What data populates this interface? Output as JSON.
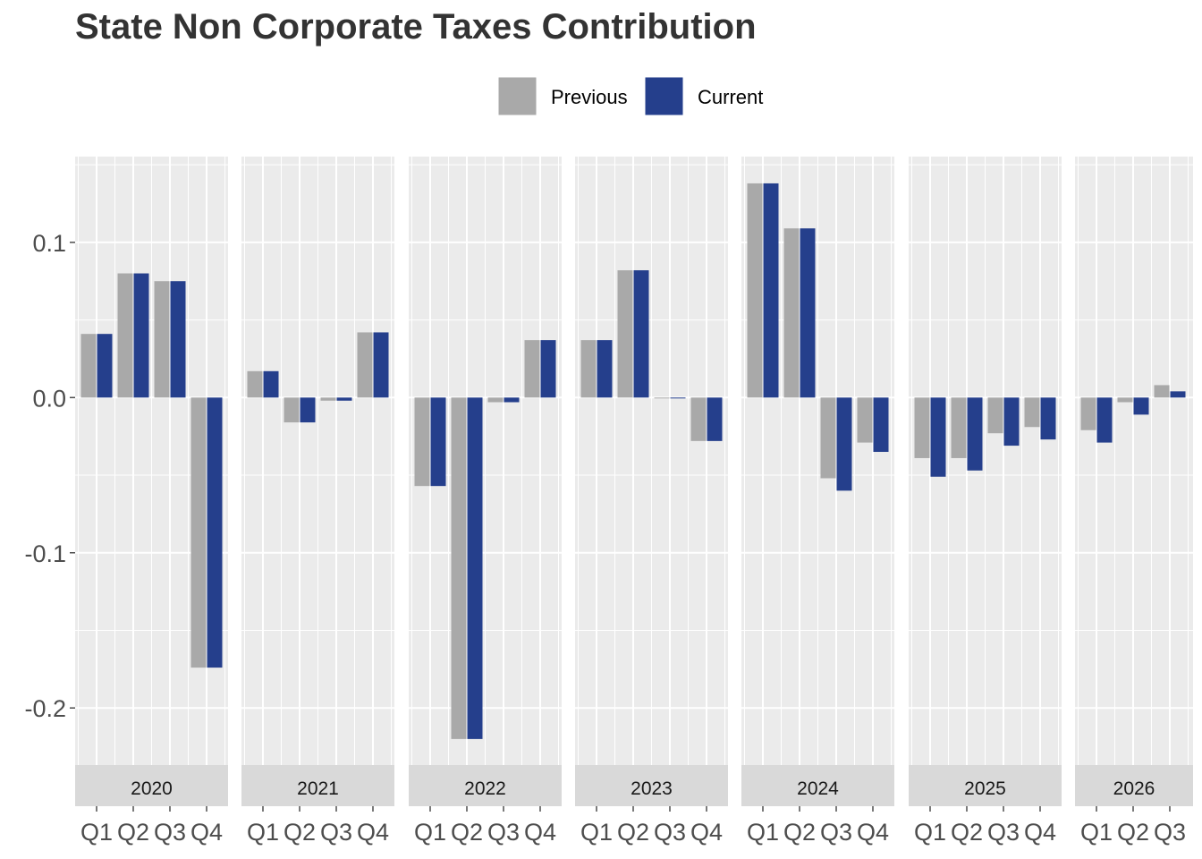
{
  "chart_data": {
    "type": "bar",
    "title": "State Non Corporate Taxes Contribution",
    "xlabel": "",
    "ylabel": "",
    "ylim": [
      -0.25,
      0.155
    ],
    "yticks": [
      -0.2,
      -0.1,
      0.0,
      0.1
    ],
    "ytick_labels": [
      "-0.2",
      "-0.1",
      "0.0",
      "0.1"
    ],
    "grid": true,
    "legend_position": "top",
    "legend": [
      {
        "name": "Previous",
        "color": "#A9A9A9"
      },
      {
        "name": "Current",
        "color": "#253F8C"
      }
    ],
    "panels": [
      {
        "year": "2020",
        "categories": [
          "Q1",
          "Q2",
          "Q3",
          "Q4"
        ],
        "series": [
          {
            "name": "Previous",
            "values": [
              0.041,
              0.08,
              0.075,
              -0.174
            ]
          },
          {
            "name": "Current",
            "values": [
              0.041,
              0.08,
              0.075,
              -0.174
            ]
          }
        ]
      },
      {
        "year": "2021",
        "categories": [
          "Q1",
          "Q2",
          "Q3",
          "Q4"
        ],
        "series": [
          {
            "name": "Previous",
            "values": [
              0.017,
              -0.016,
              -0.002,
              0.042
            ]
          },
          {
            "name": "Current",
            "values": [
              0.017,
              -0.016,
              -0.002,
              0.042
            ]
          }
        ]
      },
      {
        "year": "2022",
        "categories": [
          "Q1",
          "Q2",
          "Q3",
          "Q4"
        ],
        "series": [
          {
            "name": "Previous",
            "values": [
              -0.057,
              -0.22,
              -0.003,
              0.037
            ]
          },
          {
            "name": "Current",
            "values": [
              -0.057,
              -0.22,
              -0.003,
              0.037
            ]
          }
        ]
      },
      {
        "year": "2023",
        "categories": [
          "Q1",
          "Q2",
          "Q3",
          "Q4"
        ],
        "series": [
          {
            "name": "Previous",
            "values": [
              0.037,
              0.082,
              -0.0005,
              -0.028
            ]
          },
          {
            "name": "Current",
            "values": [
              0.037,
              0.082,
              -0.0005,
              -0.028
            ]
          }
        ]
      },
      {
        "year": "2024",
        "categories": [
          "Q1",
          "Q2",
          "Q3",
          "Q4"
        ],
        "series": [
          {
            "name": "Previous",
            "values": [
              0.138,
              0.109,
              -0.052,
              -0.029
            ]
          },
          {
            "name": "Current",
            "values": [
              0.138,
              0.109,
              -0.06,
              -0.035
            ]
          }
        ]
      },
      {
        "year": "2025",
        "categories": [
          "Q1",
          "Q2",
          "Q3",
          "Q4"
        ],
        "series": [
          {
            "name": "Previous",
            "values": [
              -0.039,
              -0.039,
              -0.023,
              -0.019
            ]
          },
          {
            "name": "Current",
            "values": [
              -0.051,
              -0.047,
              -0.031,
              -0.027
            ]
          }
        ]
      },
      {
        "year": "2026",
        "categories": [
          "Q1",
          "Q2",
          "Q3"
        ],
        "series": [
          {
            "name": "Previous",
            "values": [
              -0.021,
              -0.003,
              0.008
            ]
          },
          {
            "name": "Current",
            "values": [
              -0.029,
              -0.011,
              0.004
            ]
          }
        ]
      }
    ]
  }
}
